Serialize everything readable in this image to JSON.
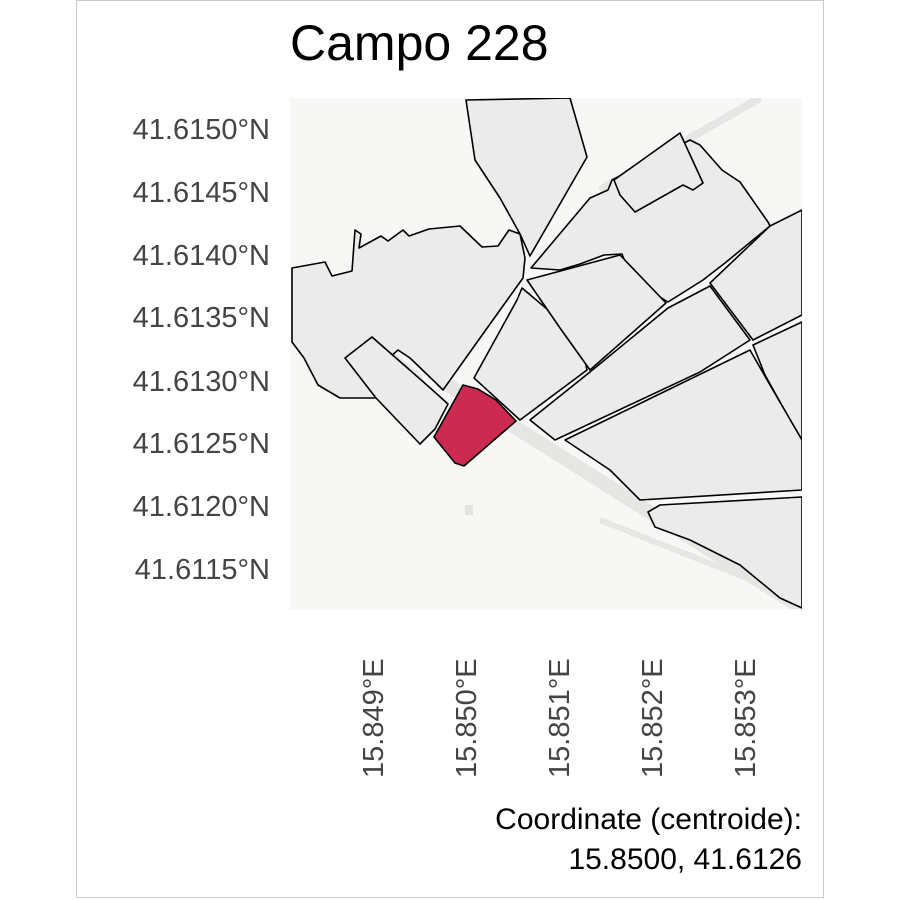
{
  "title": "Campo 228",
  "axes": {
    "y_labels": [
      "41.6150°N",
      "41.6145°N",
      "41.6140°N",
      "41.6135°N",
      "41.6130°N",
      "41.6125°N",
      "41.6120°N",
      "41.6115°N"
    ],
    "x_labels": [
      "15.849°E",
      "15.850°E",
      "15.851°E",
      "15.852°E",
      "15.853°E"
    ]
  },
  "caption": {
    "line1": "Coordinate (centroide):",
    "line2": "15.8500, 41.6126"
  },
  "colors": {
    "highlight": "#cc2a51",
    "parcel_fill": "#ebebeb",
    "background": "#f7f7f6",
    "outline": "#000000"
  },
  "selected_parcel": "Campo 228"
}
